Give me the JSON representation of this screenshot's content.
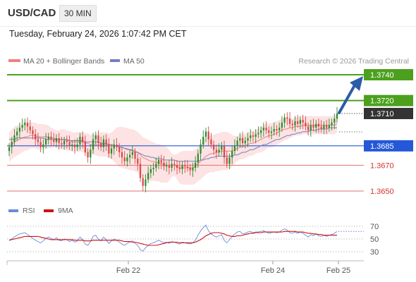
{
  "header": {
    "symbol": "USD/CAD",
    "timeframe": "30 MIN"
  },
  "datetime": "Tuesday, February 24, 2026 1:07:42 PM CET",
  "legend": {
    "ma20_bb": "MA 20 + Bollinger Bands",
    "ma50": "MA 50",
    "credit": "Research © 2026 Trading Central",
    "rsi": "RSI",
    "ma9": "9MA"
  },
  "colors": {
    "bull": "#2e8b2e",
    "bear": "#d94848",
    "ma20": "#f08080",
    "bbFill": "#fde0e0",
    "ma50": "#7080c0",
    "resistance": "#4ca01e",
    "pivot": "#2458d8",
    "support": "#e07070",
    "current": "#333333",
    "arrow": "#2b5ca8",
    "rsi": "#6a8ad8",
    "rsiMa": "#cc1111"
  },
  "chart_data": [
    {
      "type": "candlestick",
      "symbol": "USD/CAD",
      "timeframe": "30 MIN",
      "x_ticks": [
        "Feb 22",
        "Feb 24",
        "Feb 25"
      ],
      "ylim": [
        1.3645,
        1.3745
      ],
      "current_price": "1.3710",
      "levels": [
        {
          "value": 1.374,
          "label": "1.3740",
          "kind": "resistance"
        },
        {
          "value": 1.372,
          "label": "1.3720",
          "kind": "resistance"
        },
        {
          "value": 1.3685,
          "label": "1.3685",
          "kind": "pivot"
        },
        {
          "value": 1.367,
          "label": "1.3670",
          "kind": "support"
        },
        {
          "value": 1.365,
          "label": "1.3650",
          "kind": "support"
        }
      ],
      "forecast_target": 1.374,
      "close": [
        1.3684,
        1.3688,
        1.3693,
        1.3696,
        1.3699,
        1.3701,
        1.3703,
        1.37,
        1.3697,
        1.3694,
        1.369,
        1.3688,
        1.3684,
        1.3686,
        1.369,
        1.3692,
        1.369,
        1.3688,
        1.3691,
        1.3687,
        1.3686,
        1.3689,
        1.3688,
        1.3685,
        1.3686,
        1.3684,
        1.3686,
        1.3692,
        1.3688,
        1.368,
        1.3676,
        1.3682,
        1.369,
        1.3693,
        1.3687,
        1.3684,
        1.369,
        1.3686,
        1.3679,
        1.3683,
        1.3686,
        1.3684,
        1.368,
        1.3676,
        1.3673,
        1.3676,
        1.3678,
        1.368,
        1.3675,
        1.3671,
        1.366,
        1.3654,
        1.3659,
        1.3664,
        1.3667,
        1.3668,
        1.3671,
        1.3674,
        1.3672,
        1.3669,
        1.367,
        1.3668,
        1.3671,
        1.367,
        1.3668,
        1.3667,
        1.367,
        1.3669,
        1.3668,
        1.3666,
        1.3668,
        1.3672,
        1.3679,
        1.3686,
        1.3692,
        1.3696,
        1.369,
        1.3686,
        1.3682,
        1.368,
        1.3682,
        1.3685,
        1.3676,
        1.3671,
        1.3676,
        1.3681,
        1.3685,
        1.3689,
        1.3691,
        1.3687,
        1.3689,
        1.3691,
        1.3693,
        1.3692,
        1.3694,
        1.3695,
        1.3697,
        1.3699,
        1.3697,
        1.3695,
        1.3696,
        1.3698,
        1.3697,
        1.3699,
        1.3703,
        1.3707,
        1.3706,
        1.3702,
        1.3701,
        1.3704,
        1.3702,
        1.3705,
        1.3703,
        1.37,
        1.3697,
        1.3701,
        1.3699,
        1.3702,
        1.37,
        1.3698,
        1.3701,
        1.3699,
        1.3701,
        1.3703,
        1.3706,
        1.371
      ],
      "ma20": [
        1.3684,
        1.3686,
        1.3688,
        1.3689,
        1.369,
        1.3691,
        1.3692,
        1.3692,
        1.3693,
        1.3693,
        1.3693,
        1.3692,
        1.3692,
        1.3692,
        1.3692,
        1.3692,
        1.3691,
        1.3691,
        1.369,
        1.369,
        1.369,
        1.369,
        1.3689,
        1.3689,
        1.3688,
        1.3688,
        1.3688,
        1.3688,
        1.3688,
        1.3687,
        1.3687,
        1.3686,
        1.3686,
        1.3686,
        1.3686,
        1.3686,
        1.3686,
        1.3686,
        1.3685,
        1.3685,
        1.3685,
        1.3685,
        1.3684,
        1.3684,
        1.3683,
        1.3683,
        1.3682,
        1.3682,
        1.3681,
        1.368,
        1.3678,
        1.3676,
        1.3675,
        1.3674,
        1.3673,
        1.3673,
        1.3672,
        1.3672,
        1.3671,
        1.3671,
        1.367,
        1.367,
        1.367,
        1.367,
        1.3669,
        1.3668,
        1.3668,
        1.3668,
        1.3668,
        1.3668,
        1.3668,
        1.3669,
        1.3671,
        1.3673,
        1.3675,
        1.3677,
        1.3678,
        1.3679,
        1.3679,
        1.368,
        1.368,
        1.3681,
        1.3681,
        1.3681,
        1.3681,
        1.3681,
        1.3682,
        1.3683,
        1.3684,
        1.3684,
        1.3685,
        1.3686,
        1.3687,
        1.3687,
        1.3688,
        1.3689,
        1.369,
        1.3691,
        1.3692,
        1.3693,
        1.3693,
        1.3694,
        1.3695,
        1.3696,
        1.3697,
        1.3698,
        1.3698,
        1.3699,
        1.3699,
        1.37,
        1.37,
        1.37,
        1.3701,
        1.3701,
        1.3701,
        1.3701,
        1.3701,
        1.3701,
        1.3701,
        1.3701,
        1.3701,
        1.3701,
        1.3701,
        1.3701,
        1.3701,
        1.3702
      ],
      "ma50": [
        1.369,
        1.369,
        1.369,
        1.3691,
        1.3691,
        1.3691,
        1.3691,
        1.3691,
        1.3691,
        1.3691,
        1.3691,
        1.3691,
        1.3691,
        1.3691,
        1.369,
        1.369,
        1.369,
        1.369,
        1.369,
        1.369,
        1.369,
        1.369,
        1.369,
        1.3689,
        1.3689,
        1.3689,
        1.3689,
        1.3689,
        1.3689,
        1.3688,
        1.3688,
        1.3688,
        1.3688,
        1.3688,
        1.3688,
        1.3687,
        1.3687,
        1.3687,
        1.3686,
        1.3686,
        1.3685,
        1.3685,
        1.3684,
        1.3684,
        1.3683,
        1.3682,
        1.3682,
        1.3681,
        1.368,
        1.368,
        1.3679,
        1.3678,
        1.3677,
        1.3677,
        1.3676,
        1.3676,
        1.3675,
        1.3675,
        1.3675,
        1.3674,
        1.3674,
        1.3674,
        1.3674,
        1.3674,
        1.3673,
        1.3673,
        1.3673,
        1.3673,
        1.3673,
        1.3673,
        1.3673,
        1.3673,
        1.3673,
        1.3674,
        1.3674,
        1.3675,
        1.3675,
        1.3676,
        1.3676,
        1.3677,
        1.3677,
        1.3677,
        1.3677,
        1.3677,
        1.3677,
        1.3677,
        1.3678,
        1.3678,
        1.3679,
        1.368,
        1.368,
        1.3681,
        1.3682,
        1.3682,
        1.3683,
        1.3684,
        1.3685,
        1.3686,
        1.3686,
        1.3687,
        1.3688,
        1.3689,
        1.369,
        1.369,
        1.3691,
        1.3692,
        1.3693,
        1.3693,
        1.3694,
        1.3694,
        1.3695,
        1.3695,
        1.3696,
        1.3696,
        1.3696,
        1.3697,
        1.3697,
        1.3697,
        1.3698,
        1.3698,
        1.3698,
        1.3698,
        1.3699,
        1.3699,
        1.3699,
        1.3699
      ]
    },
    {
      "type": "line",
      "title": "RSI",
      "y_ticks": [
        70,
        50,
        30
      ],
      "ylim": [
        20,
        80
      ],
      "series": [
        {
          "name": "RSI",
          "values": [
            48,
            50,
            53,
            56,
            58,
            59,
            60,
            57,
            54,
            51,
            48,
            46,
            44,
            47,
            51,
            53,
            51,
            49,
            52,
            48,
            47,
            50,
            49,
            46,
            48,
            45,
            47,
            53,
            49,
            42,
            40,
            46,
            54,
            56,
            50,
            47,
            53,
            49,
            43,
            47,
            50,
            48,
            45,
            42,
            40,
            43,
            45,
            47,
            43,
            40,
            33,
            31,
            36,
            40,
            43,
            44,
            46,
            48,
            46,
            44,
            45,
            43,
            46,
            45,
            43,
            42,
            45,
            44,
            43,
            42,
            44,
            48,
            56,
            63,
            68,
            72,
            63,
            58,
            55,
            53,
            55,
            57,
            48,
            44,
            49,
            54,
            58,
            61,
            62,
            58,
            59,
            61,
            62,
            60,
            61,
            61,
            62,
            63,
            61,
            59,
            60,
            61,
            60,
            61,
            64,
            66,
            64,
            60,
            59,
            61,
            59,
            61,
            59,
            56,
            53,
            57,
            55,
            58,
            55,
            54,
            56,
            54,
            56,
            57,
            59,
            62
          ]
        },
        {
          "name": "9MA",
          "values": [
            48,
            49,
            50,
            51,
            52,
            53,
            54,
            54,
            54,
            54,
            54,
            54,
            53,
            52,
            51,
            50,
            49,
            49,
            49,
            49,
            49,
            49,
            49,
            49,
            49,
            48,
            48,
            48,
            48,
            47,
            47,
            47,
            48,
            48,
            48,
            48,
            48,
            48,
            48,
            48,
            48,
            48,
            48,
            47,
            46,
            46,
            46,
            45,
            45,
            44,
            43,
            42,
            41,
            40,
            40,
            40,
            40,
            41,
            42,
            43,
            44,
            45,
            45,
            45,
            45,
            44,
            44,
            44,
            44,
            44,
            44,
            45,
            47,
            49,
            52,
            55,
            57,
            59,
            60,
            60,
            60,
            59,
            58,
            56,
            55,
            54,
            54,
            55,
            55,
            56,
            57,
            58,
            59,
            59,
            60,
            60,
            60,
            61,
            61,
            61,
            61,
            61,
            61,
            61,
            61,
            62,
            62,
            62,
            62,
            62,
            61,
            61,
            61,
            60,
            59,
            59,
            58,
            58,
            57,
            57,
            56,
            56,
            56,
            56,
            56,
            56
          ]
        }
      ]
    }
  ]
}
